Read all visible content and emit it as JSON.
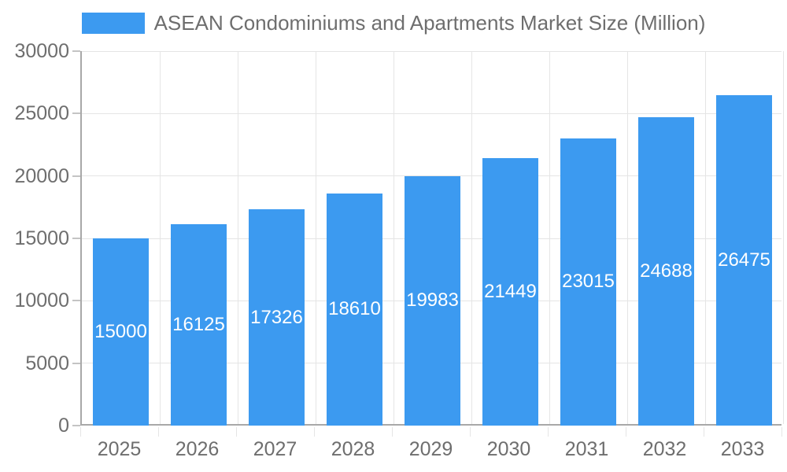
{
  "legend": {
    "label": "ASEAN Condominiums and Apartments Market Size (Million)"
  },
  "chart_data": {
    "type": "bar",
    "title": "ASEAN Condominiums and Apartments Market Size (Million)",
    "categories": [
      "2025",
      "2026",
      "2027",
      "2028",
      "2029",
      "2030",
      "2031",
      "2032",
      "2033"
    ],
    "values": [
      15000,
      16125,
      17326,
      18610,
      19983,
      21449,
      23015,
      24688,
      26475
    ],
    "xlabel": "",
    "ylabel": "",
    "ylim": [
      0,
      30000
    ],
    "yticks": [
      0,
      5000,
      10000,
      15000,
      20000,
      25000,
      30000
    ],
    "grid": true,
    "legend_position": "top-center",
    "value_labels": "inside-center",
    "colors": {
      "bar": "#3c9af0",
      "grid": "#e5e5e5",
      "axis": "#a8a8a8",
      "tick": "#c4c4c4",
      "tick_text": "#6e6e6e",
      "legend_text": "#6e6e6e",
      "value_text": "#ffffff",
      "background": "#ffffff"
    }
  }
}
